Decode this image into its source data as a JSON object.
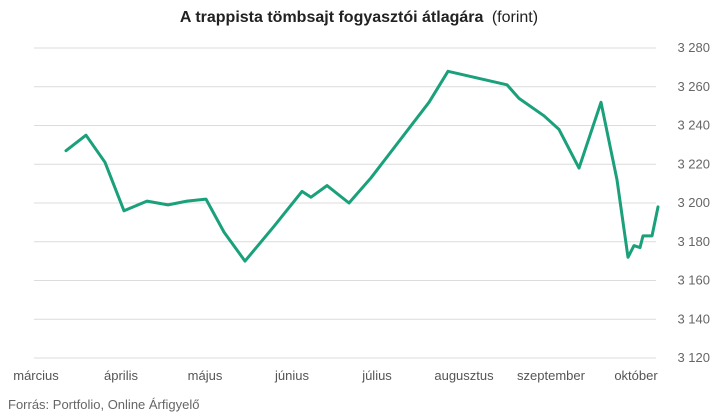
{
  "chart_data": {
    "type": "line",
    "title": "A trappista tömbsajt fogyasztói átlagára",
    "title_unit": "(forint)",
    "source": "Forrás: Portfolio, Online Árfigyelő",
    "ylim": [
      3120,
      3280
    ],
    "y_ticks": [
      3120,
      3140,
      3160,
      3180,
      3200,
      3220,
      3240,
      3260,
      3280
    ],
    "y_tick_labels": [
      "3 120",
      "3 140",
      "3 160",
      "3 180",
      "3 200",
      "3 220",
      "3 240",
      "3 260",
      "3 280"
    ],
    "y_axis_position": "right",
    "grid": true,
    "x_tick_labels": [
      "március",
      "április",
      "május",
      "június",
      "július",
      "augusztus",
      "szeptember",
      "október"
    ],
    "series": [
      {
        "color": "#1aa07a",
        "values": [
          3227,
          3235,
          3221,
          3196,
          3201,
          3199,
          3201,
          3202,
          3185,
          3170,
          3188,
          3206,
          3203,
          3209,
          3200,
          3213,
          3252,
          3268,
          3261,
          3254,
          3245,
          3238,
          3218,
          3252,
          3212,
          3172,
          3178,
          3177,
          3183,
          3183,
          3198
        ]
      }
    ]
  }
}
